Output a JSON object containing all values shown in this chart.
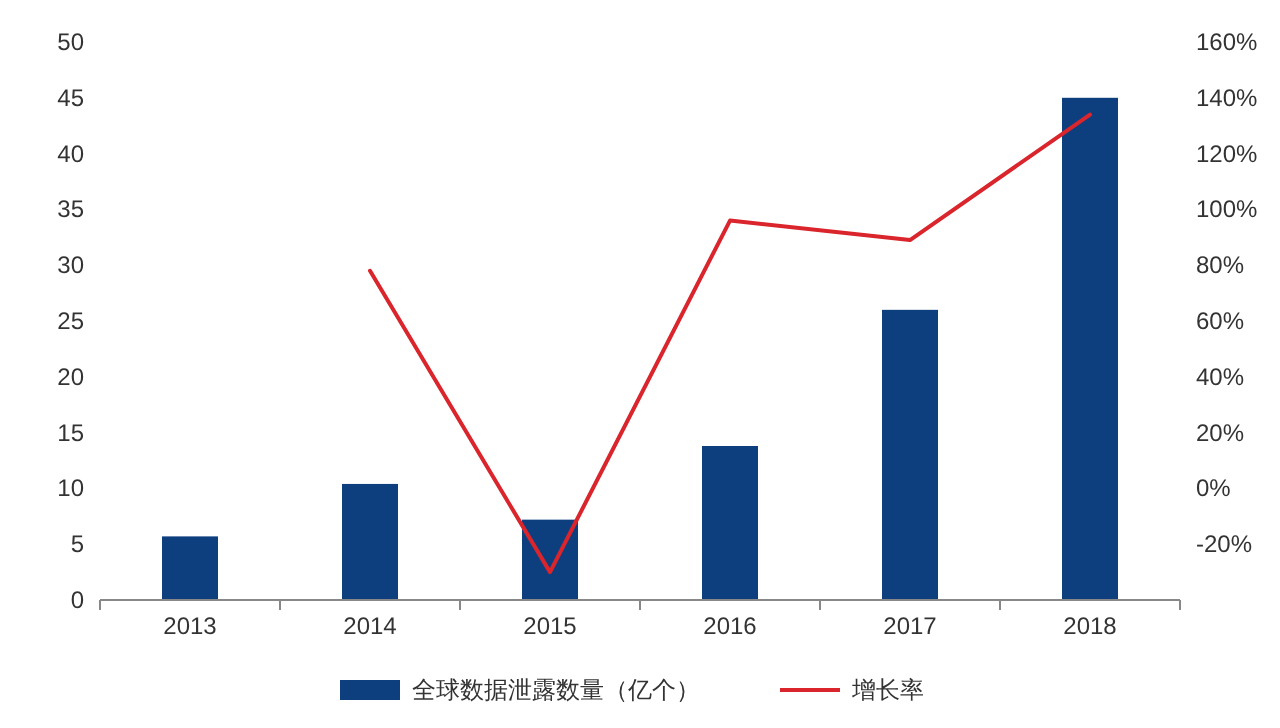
{
  "chart_data": {
    "type": "bar",
    "categories": [
      "2013",
      "2014",
      "2015",
      "2016",
      "2017",
      "2018"
    ],
    "series": [
      {
        "name": "全球数据泄露数量（亿个）",
        "color": "#0d3f7f",
        "values": [
          5.7,
          10.4,
          7.2,
          13.8,
          26,
          45
        ]
      },
      {
        "name": "增长率",
        "type": "line",
        "axis": "y2",
        "color": "#d9252b",
        "values": [
          null,
          78,
          -30,
          96,
          89,
          134
        ]
      }
    ],
    "ylim": [
      0,
      50
    ],
    "yticks": [
      0,
      5,
      10,
      15,
      20,
      25,
      30,
      35,
      40,
      45,
      50
    ],
    "y2lim": [
      -40,
      160
    ],
    "y2ticks": [
      {
        "value": -20,
        "label": "-20%"
      },
      {
        "value": 0,
        "label": "0%"
      },
      {
        "value": 20,
        "label": "20%"
      },
      {
        "value": 40,
        "label": "40%"
      },
      {
        "value": 60,
        "label": "60%"
      },
      {
        "value": 80,
        "label": "80%"
      },
      {
        "value": 100,
        "label": "100%"
      },
      {
        "value": 120,
        "label": "120%"
      },
      {
        "value": 140,
        "label": "140%"
      },
      {
        "value": 160,
        "label": "160%"
      }
    ],
    "legend": "bottom"
  }
}
